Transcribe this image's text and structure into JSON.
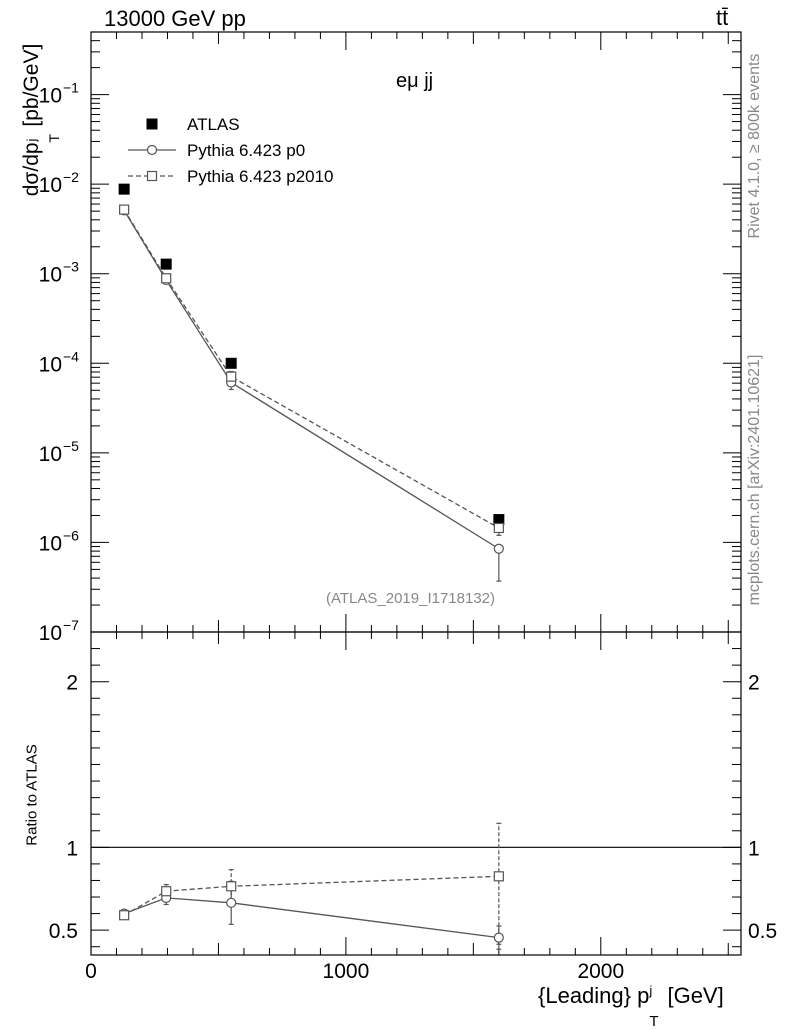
{
  "header": {
    "energy_label": "13000 GeV pp",
    "process_label": "tt̄"
  },
  "side_text": {
    "rivet": "Rivet 4.1.0, ≥ 800k events",
    "mcplots": "mcplots.cern.ch [arXiv:2401.10621]"
  },
  "colors": {
    "data": "#000000",
    "p0": "#555555",
    "p2010": "#555555",
    "axis": "#000000",
    "faint_text": "#888888"
  },
  "chart_data": [
    {
      "type": "scatter",
      "panel": "main",
      "title": "eμ jj",
      "analysis_id": "(ATLAS_2019_I1718132)",
      "ylabel": "dσ/dp_T^j [pb/GeV]",
      "yscale": "log",
      "ylim": [
        1e-07,
        0.5
      ],
      "xlim": [
        0,
        2550
      ],
      "y_tick_labels": [
        {
          "value": 0.1,
          "mantissa": "10",
          "exp": "−1"
        },
        {
          "value": 0.01,
          "mantissa": "10",
          "exp": "−2"
        },
        {
          "value": 0.001,
          "mantissa": "10",
          "exp": "−3"
        },
        {
          "value": 0.0001,
          "mantissa": "10",
          "exp": "−4"
        },
        {
          "value": 1e-05,
          "mantissa": "10",
          "exp": "−5"
        },
        {
          "value": 1e-06,
          "mantissa": "10",
          "exp": "−6"
        },
        {
          "value": 1e-07,
          "mantissa": "10",
          "exp": "−7"
        }
      ],
      "legend_position": "top-left",
      "series": [
        {
          "name": "ATLAS",
          "marker": "square-filled",
          "line": "none",
          "x": [
            130,
            295,
            550,
            1600
          ],
          "y": [
            0.0088,
            0.00128,
            0.0001,
            1.8e-06
          ]
        },
        {
          "name": "Pythia 6.423 p0",
          "marker": "circle-open",
          "line": "solid",
          "x": [
            130,
            295,
            550,
            1600
          ],
          "y": [
            0.0051,
            0.00085,
            6.1e-05,
            8.5e-07
          ],
          "y_err_low": [
            0.0001,
            3e-05,
            1e-05,
            4.8e-07
          ],
          "y_err_high": [
            0.0001,
            3e-05,
            1e-05,
            0
          ]
        },
        {
          "name": "Pythia 6.423 p2010",
          "marker": "square-open",
          "line": "dashed",
          "x": [
            130,
            295,
            550,
            1600
          ],
          "y": [
            0.0052,
            0.00089,
            7.1e-05,
            1.45e-06
          ],
          "y_err_low": [
            0.0001,
            3e-05,
            1e-05,
            2.5e-07
          ],
          "y_err_high": [
            0.0001,
            3e-05,
            1e-05,
            2.5e-07
          ]
        }
      ]
    },
    {
      "type": "scatter",
      "panel": "ratio",
      "ylabel": "Ratio to ATLAS",
      "xlabel_main": "{Leading} p",
      "xlabel_sub": "T",
      "xlabel_sup": "j",
      "xlabel_unit": "[GeV]",
      "ylim": [
        0.35,
        2.3
      ],
      "xlim": [
        0,
        2550
      ],
      "x_ticks": [
        0,
        1000,
        2000
      ],
      "x_tick_labels": [
        "0",
        "1000",
        "2000"
      ],
      "y_ticks": [
        0.5,
        1,
        2
      ],
      "y_tick_labels": [
        "0.5",
        "1",
        "2"
      ],
      "reference_line": 1,
      "series": [
        {
          "name": "Pythia 6.423 p0",
          "marker": "circle-open",
          "line": "solid",
          "x": [
            130,
            295,
            550,
            1600
          ],
          "y": [
            0.6,
            0.695,
            0.665,
            0.455
          ],
          "y_err_low": [
            0.015,
            0.04,
            0.13,
            0.07
          ],
          "y_err_high": [
            0.015,
            0.04,
            0.13,
            0.07
          ]
        },
        {
          "name": "Pythia 6.423 p2010",
          "marker": "square-open",
          "line": "dashed",
          "x": [
            130,
            295,
            550,
            1600
          ],
          "y": [
            0.59,
            0.735,
            0.765,
            0.825
          ],
          "y_err_low": [
            0.015,
            0.04,
            0.09,
            0.41
          ],
          "y_err_high": [
            0.015,
            0.04,
            0.1,
            0.32
          ]
        }
      ]
    }
  ]
}
